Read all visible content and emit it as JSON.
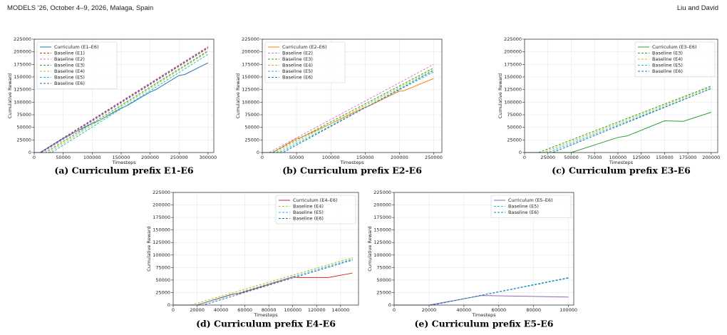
{
  "header": {
    "left": "MODELS '26, October 4–9, 2026, Malaga, Spain",
    "right": "Liu and David"
  },
  "chart_data": [
    {
      "type": "line",
      "caption": "(a) Curriculum prefix E1-E6",
      "xlabel": "Timesteps",
      "ylabel": "Cumulative Reward",
      "xlim": [
        0,
        310000
      ],
      "xticks": [
        0,
        50000,
        100000,
        150000,
        200000,
        250000,
        300000
      ],
      "ylim": [
        0,
        225000
      ],
      "yticks": [
        0,
        25000,
        50000,
        75000,
        100000,
        125000,
        150000,
        175000,
        200000,
        225000
      ],
      "grid": true,
      "legend": "upper-left",
      "series": [
        {
          "name": "Curriculum (E1–E6)",
          "color": "#1f77b4",
          "style": "solid",
          "x": [
            0,
            10000,
            50000,
            100000,
            110000,
            150000,
            160000,
            200000,
            210000,
            250000,
            260000,
            300000
          ],
          "values": [
            0,
            0,
            28000,
            58000,
            62000,
            88000,
            93000,
            120000,
            125000,
            153000,
            155000,
            178000
          ]
        },
        {
          "name": "Baseline (E1)",
          "color": "#d62728",
          "style": "dashed",
          "x": [
            0,
            10000,
            300000
          ],
          "values": [
            0,
            0,
            210000
          ]
        },
        {
          "name": "Baseline (E2)",
          "color": "#e377c2",
          "style": "dashed",
          "x": [
            0,
            15000,
            300000
          ],
          "values": [
            0,
            0,
            207000
          ]
        },
        {
          "name": "Baseline (E3)",
          "color": "#2ca02c",
          "style": "dashed",
          "x": [
            0,
            20000,
            300000
          ],
          "values": [
            0,
            0,
            202000
          ]
        },
        {
          "name": "Baseline (E4)",
          "color": "#bcbd22",
          "style": "dashed",
          "x": [
            0,
            25000,
            300000
          ],
          "values": [
            0,
            0,
            200000
          ]
        },
        {
          "name": "Baseline (E5)",
          "color": "#17becf",
          "style": "dashed",
          "x": [
            0,
            30000,
            300000
          ],
          "values": [
            0,
            0,
            195000
          ]
        },
        {
          "name": "Baseline (E6)",
          "color": "#1f77b4",
          "style": "dashed",
          "x": [
            0,
            12000,
            300000
          ],
          "values": [
            0,
            0,
            208000
          ]
        }
      ]
    },
    {
      "type": "line",
      "caption": "(b) Curriculum prefix E2-E6",
      "xlabel": "Timesteps",
      "ylabel": "Cumulative Reward",
      "xlim": [
        0,
        262000
      ],
      "xticks": [
        0,
        50000,
        100000,
        150000,
        200000,
        250000
      ],
      "ylim": [
        0,
        225000
      ],
      "yticks": [
        0,
        25000,
        50000,
        75000,
        100000,
        125000,
        150000,
        175000,
        200000,
        225000
      ],
      "grid": true,
      "legend": "upper-left",
      "series": [
        {
          "name": "Curriculum (E2–E6)",
          "color": "#ff7f0e",
          "style": "solid",
          "x": [
            0,
            15000,
            50000,
            55000,
            100000,
            150000,
            155000,
            200000,
            205000,
            250000
          ],
          "values": [
            0,
            0,
            28000,
            29000,
            57000,
            90000,
            92000,
            122000,
            122000,
            147000
          ]
        },
        {
          "name": "Baseline (E2)",
          "color": "#e377c2",
          "style": "dashed",
          "x": [
            0,
            10000,
            250000
          ],
          "values": [
            0,
            0,
            175000
          ]
        },
        {
          "name": "Baseline (E3)",
          "color": "#2ca02c",
          "style": "dashed",
          "x": [
            0,
            15000,
            250000
          ],
          "values": [
            0,
            0,
            168000
          ]
        },
        {
          "name": "Baseline (E4)",
          "color": "#bcbd22",
          "style": "dashed",
          "x": [
            0,
            20000,
            250000
          ],
          "values": [
            0,
            0,
            165000
          ]
        },
        {
          "name": "Baseline (E5)",
          "color": "#17becf",
          "style": "dashed",
          "x": [
            0,
            25000,
            250000
          ],
          "values": [
            0,
            0,
            160000
          ]
        },
        {
          "name": "Baseline (E6)",
          "color": "#1f77b4",
          "style": "dashed",
          "x": [
            0,
            30000,
            250000
          ],
          "values": [
            0,
            0,
            163000
          ]
        }
      ]
    },
    {
      "type": "line",
      "caption": "(c) Curriculum prefix E3-E6",
      "xlabel": "Timesteps",
      "ylabel": "Cumulative Reward",
      "xlim": [
        0,
        207000
      ],
      "xticks": [
        0,
        25000,
        50000,
        75000,
        100000,
        125000,
        150000,
        175000,
        200000
      ],
      "ylim": [
        0,
        225000
      ],
      "yticks": [
        0,
        25000,
        50000,
        75000,
        100000,
        125000,
        150000,
        175000,
        200000,
        225000
      ],
      "grid": true,
      "legend": "upper-right",
      "series": [
        {
          "name": "Curriculum (E3–E6)",
          "color": "#2ca02c",
          "style": "solid",
          "x": [
            0,
            50000,
            100000,
            110000,
            150000,
            170000,
            200000
          ],
          "values": [
            0,
            0,
            30000,
            33000,
            63000,
            62000,
            80000
          ]
        },
        {
          "name": "Baseline (E3)",
          "color": "#2ca02c",
          "style": "dashed",
          "x": [
            0,
            15000,
            200000
          ],
          "values": [
            0,
            0,
            132000
          ]
        },
        {
          "name": "Baseline (E4)",
          "color": "#bcbd22",
          "style": "dashed",
          "x": [
            0,
            20000,
            200000
          ],
          "values": [
            0,
            0,
            130000
          ]
        },
        {
          "name": "Baseline (E5)",
          "color": "#17becf",
          "style": "dashed",
          "x": [
            0,
            25000,
            200000
          ],
          "values": [
            0,
            0,
            127000
          ]
        },
        {
          "name": "Baseline (E6)",
          "color": "#1f77b4",
          "style": "dashed",
          "x": [
            0,
            30000,
            200000
          ],
          "values": [
            0,
            0,
            127000
          ]
        }
      ]
    },
    {
      "type": "line",
      "caption": "(d) Curriculum prefix E4-E6",
      "xlabel": "Timesteps",
      "ylabel": "Cumulative Reward",
      "xlim": [
        0,
        155000
      ],
      "xticks": [
        0,
        20000,
        40000,
        60000,
        80000,
        100000,
        120000,
        140000
      ],
      "ylim": [
        0,
        225000
      ],
      "yticks": [
        0,
        25000,
        50000,
        75000,
        100000,
        125000,
        150000,
        175000,
        200000,
        225000
      ],
      "grid": true,
      "legend": "upper-right",
      "series": [
        {
          "name": "Curriculum (E4–E6)",
          "color": "#d62728",
          "style": "solid",
          "x": [
            0,
            20000,
            50000,
            55000,
            100000,
            105000,
            130000,
            150000
          ],
          "values": [
            0,
            0,
            22000,
            23000,
            56000,
            55000,
            55000,
            64000
          ]
        },
        {
          "name": "Baseline (E4)",
          "color": "#bcbd22",
          "style": "dashed",
          "x": [
            0,
            15000,
            150000
          ],
          "values": [
            0,
            0,
            95000
          ]
        },
        {
          "name": "Baseline (E5)",
          "color": "#17becf",
          "style": "dashed",
          "x": [
            0,
            20000,
            150000
          ],
          "values": [
            0,
            0,
            92000
          ]
        },
        {
          "name": "Baseline (E6)",
          "color": "#1f77b4",
          "style": "dashed",
          "x": [
            0,
            25000,
            150000
          ],
          "values": [
            0,
            0,
            90000
          ]
        }
      ]
    },
    {
      "type": "line",
      "caption": "(e) Curriculum prefix E5-E6",
      "xlabel": "Timesteps",
      "ylabel": "Cumulative Reward",
      "xlim": [
        0,
        103000
      ],
      "xticks": [
        0,
        20000,
        40000,
        60000,
        80000,
        100000
      ],
      "ylim": [
        0,
        225000
      ],
      "yticks": [
        0,
        25000,
        50000,
        75000,
        100000,
        125000,
        150000,
        175000,
        200000,
        225000
      ],
      "grid": true,
      "legend": "upper-right",
      "series": [
        {
          "name": "Curriculum (E5–E6)",
          "color": "#9467bd",
          "style": "solid",
          "x": [
            0,
            20000,
            50000,
            100000
          ],
          "values": [
            0,
            0,
            19000,
            16000
          ]
        },
        {
          "name": "Baseline (E5)",
          "color": "#17becf",
          "style": "dashed",
          "x": [
            0,
            22000,
            100000
          ],
          "values": [
            0,
            0,
            55000
          ]
        },
        {
          "name": "Baseline (E6)",
          "color": "#1f77b4",
          "style": "dashed",
          "x": [
            0,
            22000,
            100000
          ],
          "values": [
            0,
            0,
            54000
          ]
        }
      ]
    }
  ]
}
